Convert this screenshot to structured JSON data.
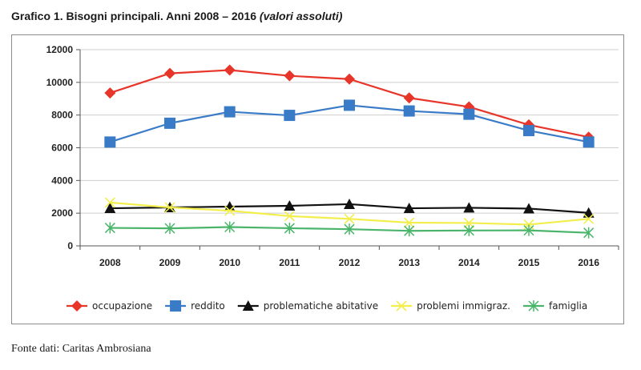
{
  "header": {
    "title": "Grafico 1. Bisogni principali. Anni 2008 – 2016",
    "subtitle": "(valori assoluti)"
  },
  "footer": {
    "source": "Fonte dati: Caritas Ambrosiana"
  },
  "chart_data": {
    "type": "line",
    "title": "Grafico 1. Bisogni principali. Anni 2008 – 2016 (valori assoluti)",
    "xlabel": "",
    "ylabel": "",
    "categories": [
      "2008",
      "2009",
      "2010",
      "2011",
      "2012",
      "2013",
      "2014",
      "2015",
      "2016"
    ],
    "ylim": [
      0,
      12000
    ],
    "yticks": [
      "0",
      "2000",
      "4000",
      "6000",
      "8000",
      "10000",
      "12000"
    ],
    "legend_position": "bottom",
    "series": [
      {
        "name": "occupazione",
        "color": "#e8352a",
        "marker": "diamond",
        "values": [
          9350,
          10550,
          10750,
          10400,
          10200,
          9050,
          8500,
          7400,
          6650
        ]
      },
      {
        "name": "reddito",
        "color": "#3a7bc8",
        "marker": "square",
        "values": [
          6350,
          7500,
          8200,
          7980,
          8600,
          8250,
          8050,
          7050,
          6350
        ]
      },
      {
        "name": "problematiche abitative",
        "color": "#111111",
        "marker": "triangle",
        "values": [
          2300,
          2350,
          2400,
          2450,
          2550,
          2300,
          2330,
          2280,
          2020
        ]
      },
      {
        "name": "problemi immigraz.",
        "color": "#f2ee4c",
        "marker": "x",
        "values": [
          2650,
          2350,
          2150,
          1820,
          1650,
          1420,
          1400,
          1300,
          1650
        ]
      },
      {
        "name": "famiglia",
        "color": "#4ab56a",
        "marker": "star",
        "values": [
          1100,
          1070,
          1150,
          1080,
          1020,
          920,
          940,
          950,
          800
        ]
      }
    ]
  }
}
